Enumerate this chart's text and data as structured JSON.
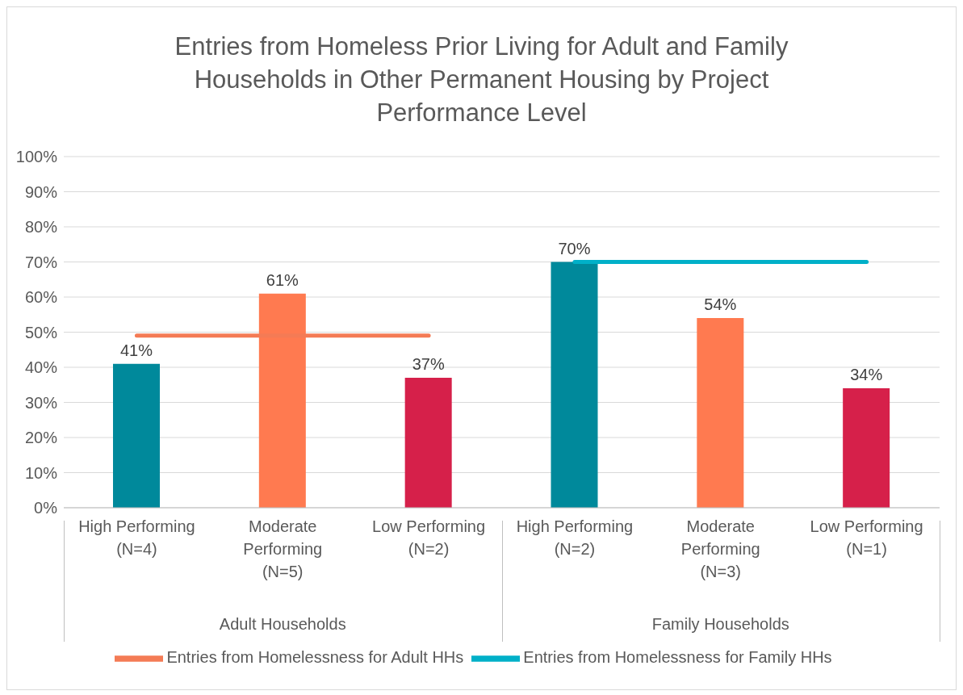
{
  "chart_data": {
    "type": "bar",
    "title": "Entries from Homeless Prior Living for Adult and Family Households in Other Permanent Housing by Project Performance Level",
    "categories": [
      "High Performing (N=4)",
      "Moderate Performing (N=5)",
      "Low Performing (N=2)",
      "High Performing (N=2)",
      "Moderate Performing (N=3)",
      "Low Performing (N=1)"
    ],
    "series": [
      {
        "colors": [
          "#00899b",
          "#ff7a50",
          "#d6204a",
          "#00899b",
          "#ff7a50",
          "#d6204a"
        ],
        "values": [
          41,
          61,
          37,
          70,
          54,
          34
        ],
        "value_labels": [
          "41%",
          "61%",
          "37%",
          "70%",
          "54%",
          "34%"
        ]
      },
      {
        "type": "line",
        "name": "Entries from Homelessness for Adult HHs",
        "color": "#f47b55",
        "values": [
          49,
          49,
          49,
          null,
          null,
          null
        ]
      },
      {
        "type": "line",
        "name": "Entries from Homelessness for Family HHs",
        "color": "#00b0c8",
        "values": [
          null,
          null,
          null,
          70,
          70,
          70
        ]
      }
    ],
    "ylim": [
      0,
      100
    ],
    "yticks": [
      {
        "value": 0,
        "label": "0%"
      },
      {
        "value": 10,
        "label": "10%"
      },
      {
        "value": 20,
        "label": "20%"
      },
      {
        "value": 30,
        "label": "30%"
      },
      {
        "value": 40,
        "label": "40%"
      },
      {
        "value": 50,
        "label": "50%"
      },
      {
        "value": 60,
        "label": "60%"
      },
      {
        "value": 70,
        "label": "70%"
      },
      {
        "value": 80,
        "label": "80%"
      },
      {
        "value": 90,
        "label": "90%"
      },
      {
        "value": 100,
        "label": "100%"
      }
    ],
    "grid": "y",
    "legend": "bottom",
    "marker": "none",
    "annotations": [
      "Adult Households",
      "Family Households"
    ]
  }
}
